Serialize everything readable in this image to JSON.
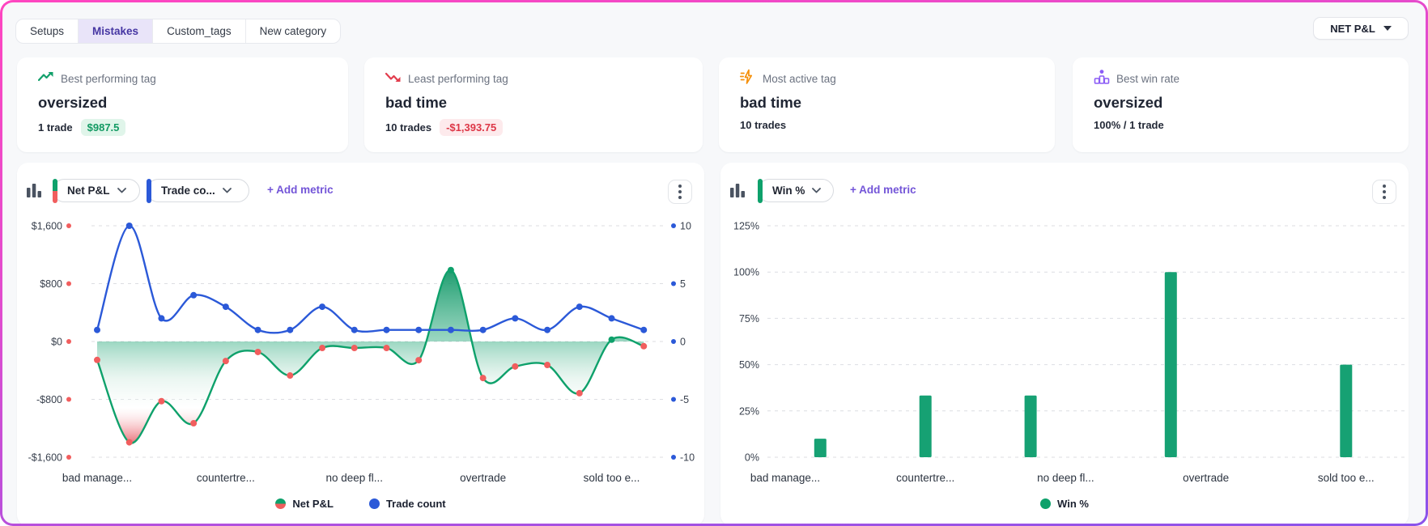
{
  "theme": {
    "page_bg": "#f7f8fa",
    "frame_gradient": [
      "#ff46c0",
      "#8a53ea"
    ],
    "positive_green": "#0ea16b",
    "negative_red": "#f15e5e",
    "line_blue": "#2b59d8",
    "accent_purple": "#7355d8"
  },
  "tabs": {
    "items": [
      {
        "label": "Setups",
        "active": false
      },
      {
        "label": "Mistakes",
        "active": true
      },
      {
        "label": "Custom_tags",
        "active": false
      },
      {
        "label": "New category",
        "active": false
      }
    ]
  },
  "account_dropdown": {
    "label": "NET P&L"
  },
  "stat_cards": [
    {
      "icon": "trend-up-icon",
      "label": "Best performing tag",
      "tag_name": "oversized",
      "stat": "1 trade",
      "badge": {
        "text": "$987.5",
        "style": "positive"
      }
    },
    {
      "icon": "trend-down-icon",
      "label": "Least performing tag",
      "tag_name": "bad time",
      "stat": "10 trades",
      "badge": {
        "text": "-$1,393.75",
        "style": "negative"
      }
    },
    {
      "icon": "activity-icon",
      "label": "Most active tag",
      "tag_name": "bad time",
      "stat": "10 trades",
      "badge": null
    },
    {
      "icon": "podium-icon",
      "label": "Best win rate",
      "tag_name": "oversized",
      "stat": "100% / 1 trade",
      "badge": null
    }
  ],
  "left_panel": {
    "metric_pills": [
      {
        "label": "Net P&L",
        "accent": "split"
      },
      {
        "label": "Trade co...",
        "accent": "blue"
      }
    ],
    "add_metric_label": "+ Add metric",
    "legend": [
      {
        "label": "Net P&L",
        "marker": "split"
      },
      {
        "label": "Trade count",
        "marker": "blue"
      }
    ]
  },
  "right_panel": {
    "metric_pills": [
      {
        "label": "Win %",
        "accent": "green"
      }
    ],
    "add_metric_label": "+ Add metric",
    "legend": [
      {
        "label": "Win %",
        "marker": "green"
      }
    ]
  },
  "chart_data": [
    {
      "type": "line",
      "title": "Net P&L and Trade count by mistake tag",
      "num_points": 18,
      "x_tick_labels": [
        "bad manage...",
        "countertre...",
        "no deep fl...",
        "overtrade",
        "sold too e..."
      ],
      "x_tick_indices": [
        0,
        4,
        8,
        12,
        16
      ],
      "y_left": {
        "labels": [
          "$1,600",
          "$800",
          "$0",
          "-$800",
          "-$1,600"
        ],
        "range": [
          -1600,
          1600
        ],
        "dot_color": "#f15e5e"
      },
      "y_right": {
        "labels": [
          "10",
          "5",
          "0",
          "-5",
          "-10"
        ],
        "range": [
          -10,
          10
        ],
        "dot_color": "#2b59d8"
      },
      "grid": "dashed",
      "series": [
        {
          "name": "Net P&L",
          "axis": "left",
          "color": "#0ea16b",
          "negative_dot_color": "#f15e5e",
          "area_fill": "green-to-red-gradient",
          "values": [
            -255,
            -1393.75,
            -825,
            -1130,
            -270,
            -145,
            -470,
            -90,
            -90,
            -90,
            -258,
            987.5,
            -505,
            -345,
            -325,
            -715,
            25,
            -65
          ]
        },
        {
          "name": "Trade count",
          "axis": "right",
          "color": "#2b59d8",
          "values": [
            1,
            10,
            2,
            4,
            3,
            1,
            1,
            3,
            1,
            1,
            1,
            1,
            1,
            2,
            1,
            3,
            2,
            1
          ]
        }
      ]
    },
    {
      "type": "bar",
      "title": "Win % by mistake tag",
      "num_slots": 18,
      "x_tick_labels": [
        "bad manage...",
        "countertre...",
        "no deep fl...",
        "overtrade",
        "sold too e..."
      ],
      "x_tick_indices": [
        0,
        4,
        8,
        12,
        16
      ],
      "y_labels": [
        "125%",
        "100%",
        "75%",
        "50%",
        "25%",
        "0%"
      ],
      "ylim": [
        0,
        125
      ],
      "grid": "dashed",
      "bar_color": "#16a173",
      "bars": [
        {
          "slot": 1,
          "value": 10
        },
        {
          "slot": 4,
          "value": 33.33
        },
        {
          "slot": 7,
          "value": 33.33
        },
        {
          "slot": 11,
          "value": 100
        },
        {
          "slot": 16,
          "value": 50
        }
      ]
    }
  ]
}
